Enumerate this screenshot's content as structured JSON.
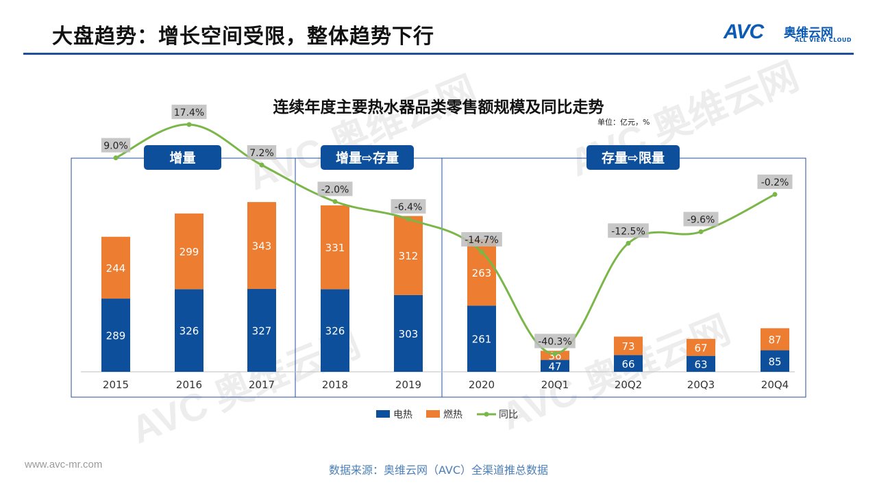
{
  "header": {
    "title": "大盘趋势：增长空间受限，整体趋势下行",
    "logo_main": "AVC",
    "logo_cn": "奥维云网",
    "logo_en": "ALL VIEW CLOUD"
  },
  "watermark": "AVC 奥维云网",
  "unit": "单位：亿元，%",
  "footer": {
    "url": "www.avc-mr.com",
    "source": "数据来源：奥维云网（AVC）全渠道推总数据"
  },
  "colors": {
    "electric": "#0e4f9c",
    "gas": "#ed7d31",
    "yoy": "#7ab648",
    "panel": "#0e4f9c",
    "rule": "#1f4e9c"
  },
  "chart_data": {
    "type": "bar",
    "title": "连续年度主要热水器品类零售额规模及同比走势",
    "stacked": true,
    "categories": [
      "2015",
      "2016",
      "2017",
      "2018",
      "2019",
      "2020",
      "20Q1",
      "20Q2",
      "20Q3",
      "20Q4"
    ],
    "series": [
      {
        "name": "电热",
        "kind": "bar",
        "values": [
          289,
          326,
          327,
          326,
          303,
          261,
          47,
          66,
          63,
          85
        ]
      },
      {
        "name": "燃热",
        "kind": "bar",
        "values": [
          244,
          299,
          343,
          331,
          312,
          263,
          36,
          73,
          67,
          87
        ]
      },
      {
        "name": "同比",
        "kind": "line",
        "values": [
          9.0,
          17.4,
          7.2,
          -2.0,
          -6.4,
          -14.7,
          -40.3,
          -12.5,
          -9.6,
          -0.2
        ],
        "labels": [
          "9.0%",
          "17.4%",
          "7.2%",
          "-2.0%",
          "-6.4%",
          "-14.7%",
          "-40.3%",
          "-12.5%",
          "-9.6%",
          "-0.2%"
        ]
      }
    ],
    "panels": [
      {
        "label": "增量",
        "categories": [
          "2015",
          "2016",
          "2017"
        ]
      },
      {
        "label": "增量⇨存量",
        "categories": [
          "2018",
          "2019"
        ]
      },
      {
        "label": "存量⇨限量",
        "categories": [
          "2020",
          "20Q1",
          "20Q2",
          "20Q3",
          "20Q4"
        ]
      }
    ],
    "legend": [
      "电热",
      "燃热",
      "同比"
    ],
    "legend_position": "bottom",
    "ylim": [
      0,
      700
    ],
    "yoy_lim": [
      -50,
      25
    ]
  }
}
